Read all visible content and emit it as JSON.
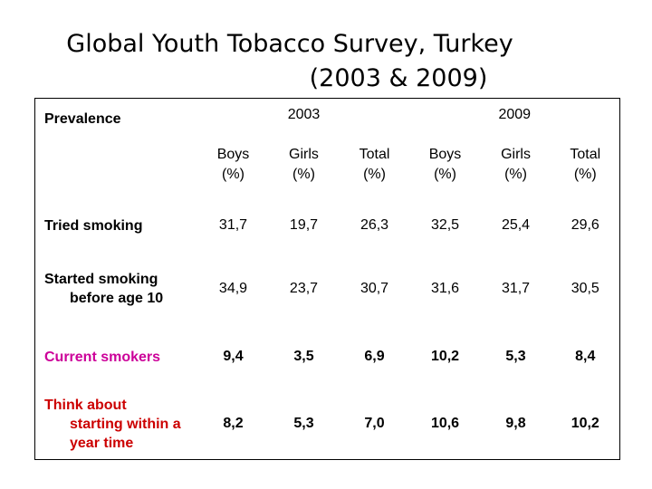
{
  "title": {
    "line1": "Global Youth Tobacco Survey, Turkey",
    "line2": "(2003 & 2009)"
  },
  "table": {
    "corner_label": "Prevalence",
    "years": [
      "2003",
      "2009"
    ],
    "subheaders": [
      [
        "Boys",
        "(%)"
      ],
      [
        "Girls",
        "(%)"
      ],
      [
        "Total",
        "(%)"
      ],
      [
        "Boys",
        "(%)"
      ],
      [
        "Girls",
        "(%)"
      ],
      [
        "Total",
        "(%)"
      ]
    ],
    "rows": [
      {
        "label": [
          "Tried smoking"
        ],
        "color": "#000000",
        "values": [
          "31,7",
          "19,7",
          "26,3",
          "32,5",
          "25,4",
          "29,6"
        ]
      },
      {
        "label": [
          "Started smoking",
          "before age 10"
        ],
        "color": "#000000",
        "values": [
          "34,9",
          "23,7",
          "30,7",
          "31,6",
          "31,7",
          "30,5"
        ]
      },
      {
        "label": [
          "Current smokers"
        ],
        "color": "#cc0099",
        "values": [
          "9,4",
          "3,5",
          "6,9",
          "10,2",
          "5,3",
          "8,4"
        ]
      },
      {
        "label": [
          "Think about",
          "starting within a",
          "year time"
        ],
        "color": "#cc0000",
        "values": [
          "8,2",
          "5,3",
          "7,0",
          "10,6",
          "9,8",
          "10,2"
        ]
      }
    ]
  }
}
